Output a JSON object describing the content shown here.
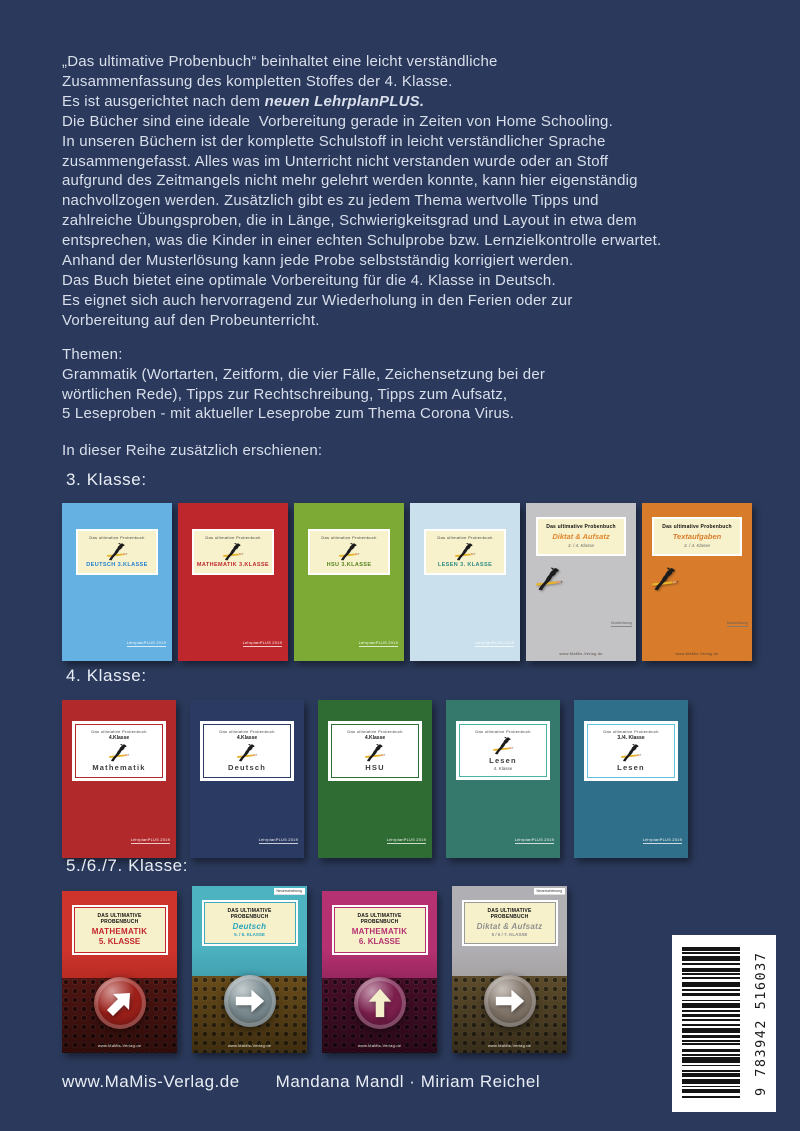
{
  "page": {
    "background": "#2b3a5c",
    "text_color": "#d9dfeb"
  },
  "intro": {
    "lines_a": [
      "„Das ultimative Probenbuch“ beinhaltet eine leicht verständliche",
      "Zusammenfassung des kompletten Stoffes der 4. Klasse."
    ],
    "l3a": "Es ist ausgerichtet nach dem ",
    "l3b": "neuen LehrplanPLUS.",
    "lines_b": [
      "Die Bücher sind eine ideale  Vorbereitung gerade in Zeiten von Home Schooling.",
      "In unseren Büchern ist der komplette Schulstoff in leicht verständlicher Sprache",
      "zusammengefasst. Alles was im Unterricht nicht verstanden wurde oder an Stoff",
      "aufgrund des Zeitmangels nicht mehr gelehrt werden konnte, kann hier eigenständig",
      "nachvollzogen werden. Zusätzlich gibt es zu jedem Thema wertvolle Tipps und",
      "zahlreiche Übungsproben, die in Länge, Schwierigkeitsgrad und Layout in etwa dem",
      "entsprechen, was die Kinder in einer echten Schulprobe bzw. Lernzielkontrolle erwartet.",
      "Anhand der Musterlösung kann jede Probe selbstständig korrigiert werden.",
      "Das Buch bietet eine optimale Vorbereitung für die 4. Klasse in Deutsch.",
      "Es eignet sich auch hervorragend zur Wiederholung in den Ferien oder zur",
      "Vorbereitung auf den Probeunterricht."
    ]
  },
  "themen": {
    "title": "Themen:",
    "lines": [
      "Grammatik (Wortarten, Zeitform, die vier Fälle, Zeichensetzung bei der",
      "wörtlichen Rede), Tipps zur Rechtschreibung, Tipps zum Aufsatz,",
      "5 Leseproben - mit aktueller Leseprobe zum Thema Corona Virus."
    ]
  },
  "series_note": "In dieser Reihe zusätzlich erschienen:",
  "sections": [
    {
      "heading": "3. Klasse:",
      "style": "r1",
      "covers": [
        {
          "variant": "classic",
          "bg": "#64b1e2",
          "arc": "Das ultimative Probenbuch",
          "icon": "horse-pencil-logo",
          "subject": "DEUTSCH 3.KLASSE",
          "subject_color": "#1f7fd0",
          "strip": "LehrplanPLUS 2019"
        },
        {
          "variant": "classic",
          "bg": "#be272b",
          "arc": "Das ultimative Probenbuch",
          "icon": "horse-pencil-logo",
          "subject": "MATHEMATIK 3.KLASSE",
          "subject_color": "#be272b",
          "strip": "LehrplanPLUS 2019"
        },
        {
          "variant": "classic",
          "bg": "#7caa35",
          "arc": "Das ultimative Probenbuch",
          "icon": "horse-pencil-logo",
          "subject": "HSU 3.KLASSE",
          "subject_color": "#55841c",
          "strip": "LehrplanPLUS 2019"
        },
        {
          "variant": "classic",
          "bg": "#cbe0ed",
          "arc": "Das ultimative Probenbuch",
          "icon": "horse-pencil-logo",
          "subject": "LESEN 3. KLASSE",
          "subject_color": "#2e8b85",
          "strip": "LehrplanPLUS 2019"
        },
        {
          "variant": "duo",
          "bg": "#c3c2c5",
          "title": "Das ultimative Probenbuch",
          "icon": "horse-pencil-logo",
          "subject": "Diktat & Aufsatz",
          "subject_color": "#e0862c",
          "klasse": "3. / 4. Klasse",
          "note": "Musterlösung",
          "site": "www.MaMis-Verlag.de"
        },
        {
          "variant": "duo",
          "bg": "#d87c2b",
          "title": "Das ultimative Probenbuch",
          "icon": "horse-pencil-logo",
          "subject": "Textaufgaben",
          "subject_color": "#d87c2b",
          "klasse": "3. / 4. Klasse",
          "note": "Musterlösung",
          "site": "www.MaMis-Verlag.de"
        }
      ]
    },
    {
      "heading": "4. Klasse:",
      "style": "r2",
      "covers": [
        {
          "bg": "#b2292b",
          "border": "#b2292b",
          "strip": "LehrplanPLUS 2019",
          "icon": "horse-pencil-logo",
          "lines": [
            {
              "k": "arc",
              "t": "Das ultimative Probenbuch"
            },
            {
              "k": "bold",
              "t": "4.Klasse"
            },
            {
              "k": "horse"
            },
            {
              "k": "subject",
              "t": "Mathematik"
            }
          ]
        },
        {
          "bg": "#2b3a63",
          "border": "#2b3a63",
          "strip": "LehrplanPLUS 2019",
          "icon": "horse-pencil-logo",
          "lines": [
            {
              "k": "arc",
              "t": "Das ultimative Probenbuch"
            },
            {
              "k": "bold",
              "t": "4.Klasse"
            },
            {
              "k": "horse"
            },
            {
              "k": "subject",
              "t": "Deutsch"
            }
          ]
        },
        {
          "bg": "#2f6c34",
          "border": "#2f6c34",
          "strip": "LehrplanPLUS 2019",
          "icon": "horse-pencil-logo",
          "lines": [
            {
              "k": "arc",
              "t": "Das ultimative Probenbuch"
            },
            {
              "k": "bold",
              "t": "4.Klasse"
            },
            {
              "k": "horse"
            },
            {
              "k": "subject",
              "t": "HSU"
            }
          ]
        },
        {
          "bg": "#35796c",
          "border": "#49b2a0",
          "strip": "LehrplanPLUS 2019",
          "icon": "horse-pencil-logo",
          "lines": [
            {
              "k": "arc",
              "t": "Das ultimative Probenbuch"
            },
            {
              "k": "horse"
            },
            {
              "k": "subject",
              "t": "Lesen"
            },
            {
              "k": "small",
              "t": "4. Klasse"
            }
          ]
        },
        {
          "bg": "#2f6f8a",
          "border": "#63c3de",
          "strip": "LehrplanPLUS 2019",
          "icon": "horse-pencil-logo",
          "lines": [
            {
              "k": "arc",
              "t": "Das ultimative Probenbuch"
            },
            {
              "k": "bold",
              "t": "3./4. Klasse"
            },
            {
              "k": "horse"
            },
            {
              "k": "subject",
              "t": "Lesen"
            }
          ]
        }
      ]
    },
    {
      "heading": "5./6./7. Klasse:",
      "style": "r3",
      "covers": [
        {
          "bg": "#ce342c",
          "bg2": "#801410",
          "accent": "#c1272d",
          "title": "DAS ULTIMATIVE PROBENBUCH",
          "subject": "MATHEMATIK",
          "subject_color": "#c1272d",
          "italic": false,
          "klasse": "5. KLASSE",
          "klasse_big": true,
          "arrow": "upright",
          "arrow_color": "#ffffff",
          "badge": "#9e201a",
          "texture": "#5e1915",
          "tag": "",
          "raised": false,
          "site": "www.MaMis-Verlag.de",
          "icon": "arrow-badge"
        },
        {
          "bg": "#4db3c1",
          "bg2": "#2a7384",
          "accent": "#3fa9bd",
          "title": "DAS ULTIMATIVE PROBENBUCH",
          "subject": "Deutsch",
          "subject_color": "#28a3bd",
          "italic": true,
          "klasse": "5. / 6. KLASSE",
          "klasse_big": false,
          "arrow": "right",
          "arrow_color": "#ffffff",
          "badge": "#7c8d92",
          "texture": "#7c5a1e",
          "tag": "Neuerscheinung",
          "raised": true,
          "site": "www.MaMis-Verlag.de",
          "icon": "arrow-badge"
        },
        {
          "bg": "#b53171",
          "bg2": "#4f0c33",
          "accent": "#b5306f",
          "title": "DAS ULTIMATIVE PROBENBUCH",
          "subject": "MATHEMATIK",
          "subject_color": "#b5306f",
          "italic": false,
          "klasse": "6. KLASSE",
          "klasse_big": true,
          "arrow": "up",
          "arrow_color": "#f4eecb",
          "badge": "#7d1f4e",
          "texture": "#541030",
          "tag": "",
          "raised": false,
          "site": "www.MaMis-Verlag.de",
          "icon": "arrow-badge"
        },
        {
          "bg": "#b0afb4",
          "bg2": "#8f8478",
          "accent": "#9a9a9a",
          "title": "DAS ULTIMATIVE PROBENBUCH",
          "subject": "Diktat & Aufsatz",
          "subject_color": "#8f8f8f",
          "italic": true,
          "klasse": "5 / 6 / 7. KLASSE",
          "klasse_big": false,
          "arrow": "right",
          "arrow_color": "#ffffff",
          "badge": "#83766a",
          "texture": "#6e5a33",
          "tag": "Neuerscheinung",
          "raised": true,
          "site": "www.MaMis-Verlag.de",
          "icon": "arrow-badge"
        }
      ]
    }
  ],
  "barcode": {
    "isbn": "9 783942 516037"
  },
  "footer": {
    "website": "www.MaMis-Verlag.de",
    "authors": "Mandana Mandl  ·  Miriam Reichel"
  }
}
